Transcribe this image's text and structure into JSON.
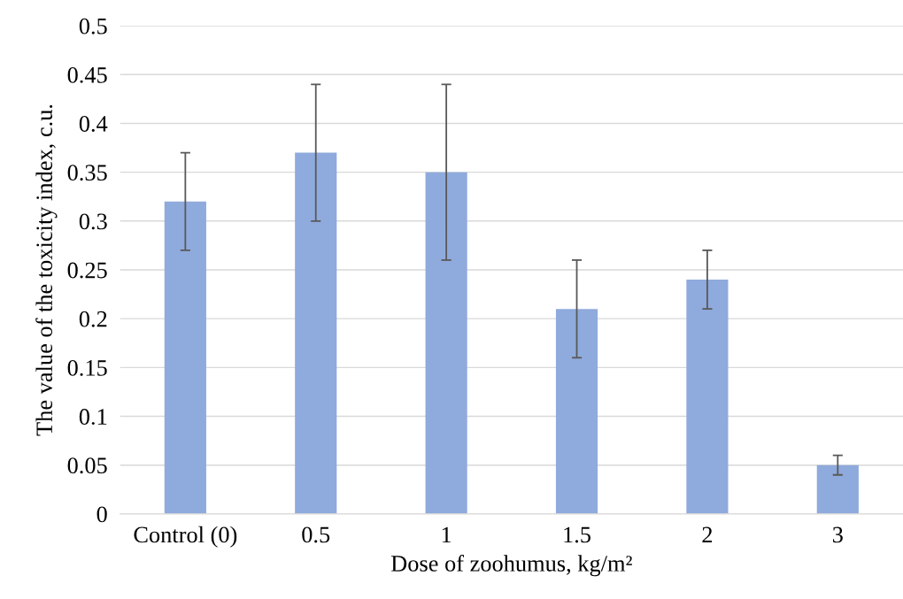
{
  "chart_data": {
    "type": "bar",
    "xlabel": "Dose of zoohumus, kg/m²",
    "ylabel": "The value of the toxicity index, c.u.",
    "categories": [
      "Control (0)",
      "0.5",
      "1",
      "1.5",
      "2",
      "3"
    ],
    "values": [
      0.32,
      0.37,
      0.35,
      0.21,
      0.24,
      0.05
    ],
    "errors": [
      [
        0.27,
        0.37
      ],
      [
        0.3,
        0.44
      ],
      [
        0.26,
        0.44
      ],
      [
        0.16,
        0.26
      ],
      [
        0.21,
        0.27
      ],
      [
        0.04,
        0.06
      ]
    ],
    "color": "#8faadc",
    "ylim": [
      0,
      0.5
    ],
    "yticks": [
      0,
      0.05,
      0.1,
      0.15,
      0.2,
      0.25,
      0.3,
      0.35,
      0.4,
      0.45,
      0.5
    ],
    "grid": "y"
  }
}
